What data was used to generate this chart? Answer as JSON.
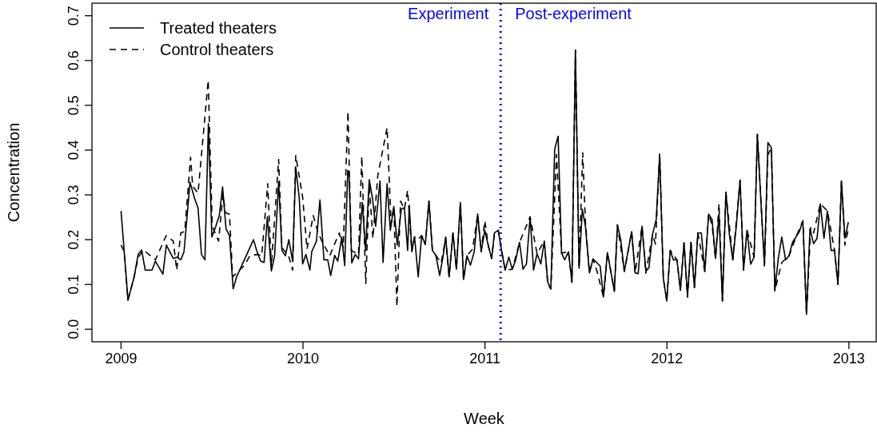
{
  "chart_data": {
    "type": "line",
    "xlabel": "Week",
    "ylabel": "Concentration",
    "xlim": [
      2008.84,
      2013.15
    ],
    "ylim": [
      -0.028,
      0.728
    ],
    "xticks": [
      2009,
      2010,
      2011,
      2012,
      2013
    ],
    "yticks": [
      {
        "value": 0,
        "label": "0.0"
      },
      0.1,
      0.2,
      0.3,
      0.4,
      0.5,
      0.6,
      0.7
    ],
    "grid": false,
    "legend": "top left",
    "marker": "none",
    "ref_lines": [
      {
        "axis": "x",
        "value": 2011.086,
        "color": "#0000ff",
        "line_style": "dotted"
      }
    ],
    "annotations": [
      "Experiment",
      "Post-experiment"
    ],
    "series": [
      {
        "name": "Treated theaters",
        "color": "#000000",
        "line_style": "solid",
        "x": [
          2009.0,
          2009.038,
          2009.072,
          2009.094,
          2009.113,
          2009.133,
          2009.17,
          2009.189,
          2009.23,
          2009.249,
          2009.287,
          2009.307,
          2009.328,
          2009.346,
          2009.379,
          2009.404,
          2009.423,
          2009.442,
          2009.461,
          2009.48,
          2009.499,
          2009.521,
          2009.54,
          2009.558,
          2009.577,
          2009.596,
          2009.616,
          2009.635,
          2009.728,
          2009.745,
          2009.767,
          2009.786,
          2009.804,
          2009.826,
          2009.844,
          2009.866,
          2009.884,
          2009.903,
          2009.922,
          2009.943,
          2009.96,
          2009.979,
          2009.998,
          2010.016,
          2010.038,
          2010.048,
          2010.074,
          2010.093,
          2010.115,
          2010.136,
          2010.152,
          2010.174,
          2010.191,
          2010.213,
          2010.229,
          2010.246,
          2010.253,
          2010.268,
          2010.287,
          2010.305,
          2010.326,
          2010.344,
          2010.364,
          2010.382,
          2010.399,
          2010.423,
          2010.44,
          2010.462,
          2010.48,
          2010.499,
          2010.518,
          2010.54,
          2010.557,
          2010.575,
          2010.584,
          2010.598,
          2010.613,
          2010.633,
          2010.652,
          2010.672,
          2010.692,
          2010.711,
          2010.73,
          2010.751,
          2010.77,
          2010.784,
          2010.803,
          2010.824,
          2010.843,
          2010.865,
          2010.882,
          2010.901,
          2010.92,
          2010.941,
          2010.96,
          2010.979,
          2010.999,
          2011.019,
          2011.037,
          2011.052,
          2011.073,
          2011.091,
          2011.111,
          2011.131,
          2011.15,
          2011.169,
          2011.19,
          2011.209,
          2011.228,
          2011.248,
          2011.267,
          2011.286,
          2011.307,
          2011.326,
          2011.345,
          2011.362,
          2011.383,
          2011.402,
          2011.421,
          2011.438,
          2011.459,
          2011.478,
          2011.497,
          2011.517,
          2011.535,
          2011.552,
          2011.574,
          2011.594,
          2011.633,
          2011.651,
          2011.673,
          2011.711,
          2011.728,
          2011.746,
          2011.766,
          2011.806,
          2011.825,
          2011.842,
          2011.863,
          2011.884,
          2011.901,
          2011.921,
          2011.941,
          2011.96,
          2011.98,
          2011.999,
          2012.018,
          2012.035,
          2012.055,
          2012.074,
          2012.094,
          2012.113,
          2012.132,
          2012.151,
          2012.17,
          2012.189,
          2012.208,
          2012.229,
          2012.248,
          2012.267,
          2012.286,
          2012.305,
          2012.324,
          2012.343,
          2012.362,
          2012.381,
          2012.402,
          2012.421,
          2012.44,
          2012.46,
          2012.479,
          2012.497,
          2012.516,
          2012.536,
          2012.555,
          2012.574,
          2012.593,
          2012.612,
          2012.631,
          2012.652,
          2012.671,
          2012.69,
          2012.709,
          2012.728,
          2012.747,
          2012.767,
          2012.786,
          2012.806,
          2012.825,
          2012.843,
          2012.863,
          2012.882,
          2012.902,
          2012.921,
          2012.94,
          2012.959,
          2012.978,
          2012.997
        ],
        "values": [
          0.264,
          0.065,
          0.117,
          0.167,
          0.177,
          0.132,
          0.132,
          0.152,
          0.123,
          0.188,
          0.158,
          0.161,
          0.155,
          0.173,
          0.328,
          0.292,
          0.271,
          0.167,
          0.155,
          0.459,
          0.206,
          0.23,
          0.254,
          0.318,
          0.224,
          0.209,
          0.09,
          0.117,
          0.2,
          0.176,
          0.152,
          0.149,
          0.251,
          0.13,
          0.164,
          0.329,
          0.176,
          0.164,
          0.2,
          0.152,
          0.361,
          0.295,
          0.146,
          0.167,
          0.132,
          0.173,
          0.197,
          0.289,
          0.155,
          0.155,
          0.12,
          0.165,
          0.152,
          0.206,
          0.142,
          0.355,
          0.343,
          0.148,
          0.167,
          0.157,
          0.283,
          0.176,
          0.334,
          0.292,
          0.23,
          0.331,
          0.149,
          0.325,
          0.221,
          0.274,
          0.188,
          0.268,
          0.271,
          0.176,
          0.277,
          0.176,
          0.206,
          0.117,
          0.209,
          0.189,
          0.286,
          0.176,
          0.165,
          0.12,
          0.164,
          0.206,
          0.117,
          0.215,
          0.134,
          0.283,
          0.111,
          0.164,
          0.143,
          0.173,
          0.257,
          0.173,
          0.221,
          0.185,
          0.158,
          0.215,
          0.221,
          0.176,
          0.132,
          0.161,
          0.134,
          0.155,
          0.194,
          0.134,
          0.146,
          0.251,
          0.132,
          0.169,
          0.146,
          0.197,
          0.105,
          0.09,
          0.402,
          0.431,
          0.17,
          0.155,
          0.173,
          0.105,
          0.623,
          0.136,
          0.268,
          0.23,
          0.126,
          0.157,
          0.141,
          0.072,
          0.171,
          0.085,
          0.233,
          0.2,
          0.129,
          0.218,
          0.126,
          0.124,
          0.23,
          0.13,
          0.137,
          0.212,
          0.245,
          0.391,
          0.114,
          0.063,
          0.176,
          0.155,
          0.155,
          0.087,
          0.193,
          0.072,
          0.194,
          0.093,
          0.215,
          0.215,
          0.129,
          0.257,
          0.245,
          0.158,
          0.257,
          0.063,
          0.306,
          0.212,
          0.155,
          0.23,
          0.333,
          0.132,
          0.221,
          0.145,
          0.161,
          0.435,
          0.289,
          0.142,
          0.417,
          0.405,
          0.086,
          0.158,
          0.206,
          0.155,
          0.164,
          0.194,
          0.206,
          0.218,
          0.242,
          0.033,
          0.224,
          0.191,
          0.203,
          0.28,
          0.203,
          0.264,
          0.176,
          0.176,
          0.1,
          0.331,
          0.203,
          0.239
        ]
      },
      {
        "name": "Control theaters",
        "color": "#000000",
        "line_style": "dashed",
        "x": [
          2009.0,
          2009.018,
          2009.038,
          2009.072,
          2009.094,
          2009.123,
          2009.189,
          2009.248,
          2009.287,
          2009.306,
          2009.328,
          2009.35,
          2009.382,
          2009.394,
          2009.423,
          2009.479,
          2009.501,
          2009.536,
          2009.56,
          2009.574,
          2009.596,
          2009.613,
          2009.679,
          2009.708,
          2009.749,
          2009.773,
          2009.806,
          2009.826,
          2009.866,
          2009.884,
          2009.921,
          2009.943,
          2009.96,
          2009.998,
          2010.022,
          2010.056,
          2010.081,
          2010.103,
          2010.147,
          2010.199,
          2010.221,
          2010.247,
          2010.265,
          2010.305,
          2010.323,
          2010.345,
          2010.364,
          2010.384,
          2010.411,
          2010.462,
          2010.484,
          2010.499,
          2010.516,
          2010.536,
          2010.557,
          2010.575,
          2010.598,
          2010.613,
          2010.631,
          2010.652,
          2010.672,
          2010.692,
          2010.711,
          2010.759,
          2010.784,
          2010.803,
          2010.824,
          2010.843,
          2010.865,
          2010.882,
          2010.901,
          2010.932,
          2010.96,
          2010.979,
          2010.999,
          2011.019,
          2011.037,
          2011.052,
          2011.073,
          2011.091,
          2011.111,
          2011.15,
          2011.19,
          2011.248,
          2011.286,
          2011.326,
          2011.345,
          2011.362,
          2011.393,
          2011.421,
          2011.459,
          2011.478,
          2011.497,
          2011.517,
          2011.537,
          2011.552,
          2011.574,
          2011.594,
          2011.616,
          2011.651,
          2011.673,
          2011.711,
          2011.728,
          2011.766,
          2011.806,
          2011.825,
          2011.863,
          2011.884,
          2011.921,
          2011.937,
          2011.96,
          2011.98,
          2011.999,
          2012.018,
          2012.055,
          2012.074,
          2012.094,
          2012.113,
          2012.132,
          2012.151,
          2012.17,
          2012.208,
          2012.229,
          2012.248,
          2012.267,
          2012.286,
          2012.305,
          2012.324,
          2012.362,
          2012.402,
          2012.421,
          2012.44,
          2012.479,
          2012.497,
          2012.536,
          2012.555,
          2012.574,
          2012.593,
          2012.631,
          2012.671,
          2012.709,
          2012.747,
          2012.767,
          2012.79,
          2012.806,
          2012.843,
          2012.882,
          2012.921,
          2012.94,
          2012.959,
          2012.978,
          2012.997
        ],
        "values": [
          0.188,
          0.173,
          0.065,
          0.117,
          0.16,
          0.177,
          0.155,
          0.209,
          0.197,
          0.132,
          0.215,
          0.218,
          0.384,
          0.319,
          0.304,
          0.556,
          0.23,
          0.197,
          0.301,
          0.26,
          0.257,
          0.117,
          0.143,
          0.164,
          0.167,
          0.164,
          0.325,
          0.141,
          0.379,
          0.182,
          0.164,
          0.132,
          0.388,
          0.295,
          0.179,
          0.254,
          0.218,
          0.197,
          0.164,
          0.215,
          0.182,
          0.486,
          0.176,
          0.167,
          0.386,
          0.102,
          0.322,
          0.203,
          0.343,
          0.45,
          0.236,
          0.274,
          0.051,
          0.286,
          0.268,
          0.31,
          0.173,
          0.206,
          0.2,
          0.209,
          0.189,
          0.286,
          0.176,
          0.148,
          0.203,
          0.117,
          0.215,
          0.134,
          0.283,
          0.111,
          0.164,
          0.179,
          0.257,
          0.173,
          0.242,
          0.185,
          0.158,
          0.215,
          0.221,
          0.176,
          0.132,
          0.134,
          0.194,
          0.251,
          0.169,
          0.197,
          0.1,
          0.09,
          0.39,
          0.17,
          0.173,
          0.105,
          0.623,
          0.136,
          0.394,
          0.24,
          0.126,
          0.157,
          0.129,
          0.072,
          0.171,
          0.085,
          0.233,
          0.129,
          0.218,
          0.126,
          0.23,
          0.125,
          0.212,
          0.19,
          0.391,
          0.114,
          0.063,
          0.176,
          0.155,
          0.087,
          0.193,
          0.072,
          0.194,
          0.093,
          0.215,
          0.129,
          0.257,
          0.233,
          0.158,
          0.28,
          0.063,
          0.306,
          0.155,
          0.333,
          0.132,
          0.221,
          0.161,
          0.435,
          0.142,
          0.39,
          0.405,
          0.086,
          0.149,
          0.164,
          0.206,
          0.242,
          0.033,
          0.227,
          0.215,
          0.28,
          0.264,
          0.176,
          0.1,
          0.331,
          0.188,
          0.224
        ]
      }
    ]
  }
}
